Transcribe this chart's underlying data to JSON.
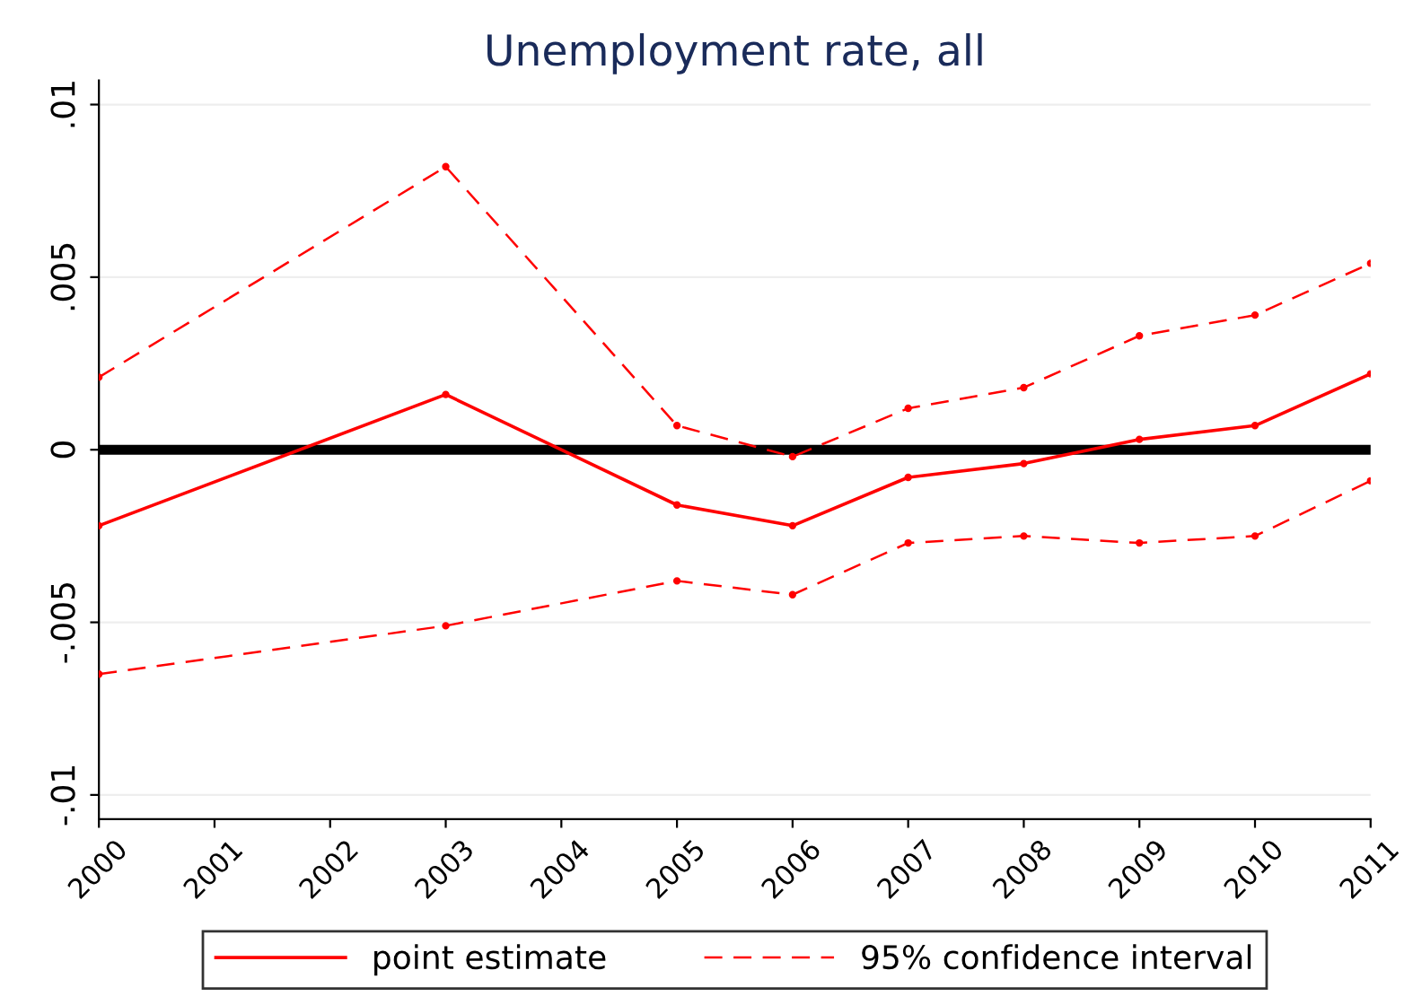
{
  "chart_data": {
    "type": "line",
    "title": "Unemployment rate, all",
    "x": [
      2000,
      2003,
      2005,
      2006,
      2007,
      2008,
      2009,
      2010,
      2011
    ],
    "series": [
      {
        "name": "point estimate",
        "color": "#ff0000",
        "line_style": "solid",
        "values": [
          -0.0022,
          0.0016,
          -0.0016,
          -0.0022,
          -0.0008,
          -0.0004,
          0.0003,
          0.0007,
          0.0022
        ]
      },
      {
        "name": "95% confidence interval",
        "color": "#ff0000",
        "line_style": "dashed",
        "values": [
          0.0021,
          0.0082,
          0.0007,
          -0.0002,
          0.0012,
          0.0018,
          0.0033,
          0.0039,
          0.0054
        ]
      },
      {
        "color": "#ff0000",
        "line_style": "dashed",
        "values": [
          -0.0065,
          -0.0051,
          -0.0038,
          -0.0042,
          -0.0027,
          -0.0025,
          -0.0027,
          -0.0025,
          -0.0009
        ]
      }
    ],
    "xlim": [
      2000,
      2011
    ],
    "xticks": [
      2000,
      2001,
      2002,
      2003,
      2004,
      2005,
      2006,
      2007,
      2008,
      2009,
      2010,
      2011
    ],
    "ylim": [
      -0.0107,
      0.0107
    ],
    "yticks": [
      {
        "value": -0.01,
        "label": "-.01"
      },
      {
        "value": -0.005,
        "label": "-.005"
      },
      {
        "value": 0,
        "label": "0"
      },
      {
        "value": 0.005,
        "label": ".005"
      },
      {
        "value": 0.01,
        "label": ".01"
      }
    ],
    "ref_lines": [
      {
        "axis": "y",
        "value": 0,
        "label": null,
        "color": "#000000"
      }
    ],
    "grid": "y",
    "legend": "bottom",
    "marker": "circle"
  }
}
